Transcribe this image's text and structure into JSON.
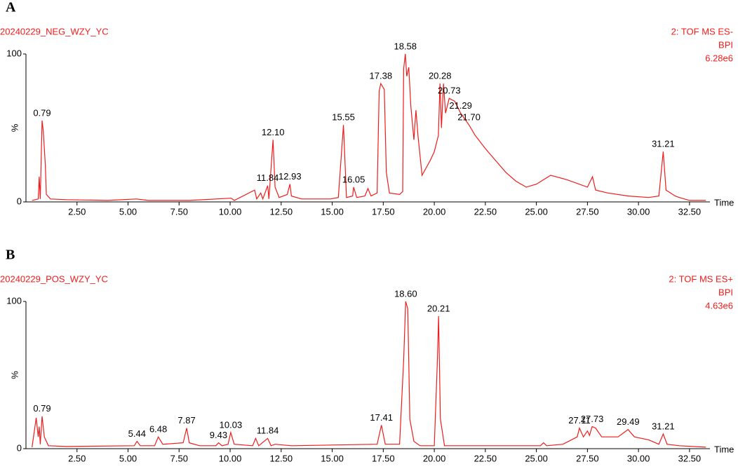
{
  "chart_data": [
    {
      "type": "line",
      "panel": "A",
      "title": "20240229_NEG_WZY_YC",
      "info": [
        "2: TOF MS ES-",
        "BPI",
        "6.28e6"
      ],
      "ylabel": "%",
      "xlabel": "Time",
      "color": "#ee1c1c",
      "xlim": [
        0,
        33.5
      ],
      "ylim": [
        0,
        100
      ],
      "xticks": [
        {
          "value": 2.5,
          "label": "2.50"
        },
        {
          "value": 5,
          "label": "5.00"
        },
        {
          "value": 7.5,
          "label": "7.50"
        },
        {
          "value": 10,
          "label": "10.00"
        },
        {
          "value": 12.5,
          "label": "12.50"
        },
        {
          "value": 15,
          "label": "15.00"
        },
        {
          "value": 17.5,
          "label": "17.50"
        },
        {
          "value": 20,
          "label": "20.00"
        },
        {
          "value": 22.5,
          "label": "22.50"
        },
        {
          "value": 25,
          "label": "25.00"
        },
        {
          "value": 27.5,
          "label": "27.50"
        },
        {
          "value": 30,
          "label": "30.00"
        },
        {
          "value": 32.5,
          "label": "32.50"
        }
      ],
      "yticks": [
        0,
        100
      ],
      "x": [
        0.3,
        0.6,
        0.65,
        0.7,
        0.79,
        0.85,
        0.95,
        1.0,
        1.2,
        2,
        4,
        5.4,
        6,
        8,
        10.05,
        10.2,
        11.2,
        11.3,
        11.5,
        11.6,
        11.84,
        11.9,
        12.1,
        12.2,
        12.4,
        12.8,
        12.93,
        13.0,
        13.5,
        14.9,
        15.3,
        15.55,
        15.7,
        16.0,
        16.05,
        16.2,
        16.6,
        16.75,
        16.9,
        17.2,
        17.3,
        17.38,
        17.55,
        17.65,
        17.8,
        18.3,
        18.45,
        18.5,
        18.58,
        18.65,
        18.75,
        18.85,
        19.0,
        19.1,
        19.2,
        19.4,
        19.8,
        20.0,
        20.2,
        20.28,
        20.35,
        20.45,
        20.55,
        20.73,
        21.0,
        21.29,
        21.7,
        22.0,
        22.5,
        23.0,
        23.5,
        24.0,
        24.5,
        25.0,
        25.7,
        26.5,
        27.5,
        27.75,
        27.9,
        28.5,
        29.5,
        30.5,
        31.0,
        31.21,
        31.35,
        31.8,
        32.0,
        32.5,
        33.3
      ],
      "values": [
        1,
        2,
        17,
        2,
        55,
        48,
        25,
        5,
        2,
        1.5,
        1,
        2,
        1,
        1,
        2.5,
        1,
        8,
        2,
        6,
        2,
        11,
        2,
        42,
        10,
        3,
        5,
        12,
        4,
        2,
        2,
        3,
        52,
        3,
        4,
        10,
        3,
        4,
        9,
        4,
        6,
        75,
        80,
        76,
        20,
        6,
        5,
        7,
        90,
        100,
        85,
        91,
        65,
        42,
        62,
        45,
        18,
        28,
        34,
        45,
        80,
        50,
        80,
        60,
        70,
        68,
        60,
        52,
        45,
        36,
        28,
        20,
        14,
        10,
        12,
        18,
        15,
        10,
        17,
        8,
        6,
        4,
        3,
        4,
        34,
        8,
        4,
        3,
        1,
        1
      ],
      "annotations": [
        {
          "text": "0.79",
          "x": 0.79,
          "y": 55
        },
        {
          "text": "11.84",
          "x": 11.84,
          "y": 11
        },
        {
          "text": "12.10",
          "x": 12.1,
          "y": 42
        },
        {
          "text": "12.93",
          "x": 12.93,
          "y": 12
        },
        {
          "text": "15.55",
          "x": 15.55,
          "y": 52
        },
        {
          "text": "16.05",
          "x": 16.05,
          "y": 10
        },
        {
          "text": "17.38",
          "x": 17.38,
          "y": 80
        },
        {
          "text": "18.58",
          "x": 18.58,
          "y": 100
        },
        {
          "text": "20.28",
          "x": 20.28,
          "y": 80
        },
        {
          "text": "20.73",
          "x": 20.73,
          "y": 70
        },
        {
          "text": "21.29",
          "x": 21.29,
          "y": 60
        },
        {
          "text": "21.70",
          "x": 21.7,
          "y": 52
        },
        {
          "text": "31.21",
          "x": 31.21,
          "y": 34
        }
      ]
    },
    {
      "type": "line",
      "panel": "B",
      "title": "20240229_POS_WZY_YC",
      "info": [
        "2: TOF MS ES+",
        "BPI",
        "4.63e6"
      ],
      "ylabel": "%",
      "xlabel": "Time",
      "color": "#ee1c1c",
      "xlim": [
        0,
        33.5
      ],
      "ylim": [
        0,
        100
      ],
      "xticks": [
        {
          "value": 2.5,
          "label": "2.50"
        },
        {
          "value": 5,
          "label": "5.00"
        },
        {
          "value": 7.5,
          "label": "7.50"
        },
        {
          "value": 10,
          "label": "10.00"
        },
        {
          "value": 12.5,
          "label": "12.50"
        },
        {
          "value": 15,
          "label": "15.00"
        },
        {
          "value": 17.5,
          "label": "17.50"
        },
        {
          "value": 20,
          "label": "20.00"
        },
        {
          "value": 22.5,
          "label": "22.50"
        },
        {
          "value": 25,
          "label": "25.00"
        },
        {
          "value": 27.5,
          "label": "27.50"
        },
        {
          "value": 30,
          "label": "30.00"
        },
        {
          "value": 32.5,
          "label": "32.50"
        }
      ],
      "yticks": [
        0,
        100
      ],
      "x": [
        0.3,
        0.5,
        0.6,
        0.65,
        0.7,
        0.79,
        0.9,
        1.1,
        2,
        5.3,
        5.44,
        5.6,
        6.3,
        6.48,
        6.7,
        7.7,
        7.87,
        8.0,
        8.5,
        9.3,
        9.43,
        9.6,
        9.9,
        10.03,
        10.2,
        11.1,
        11.25,
        11.4,
        11.84,
        12.0,
        12.2,
        13,
        17.2,
        17.41,
        17.6,
        18.3,
        18.5,
        18.6,
        18.7,
        18.8,
        19.0,
        19.3,
        20.0,
        20.15,
        20.21,
        20.3,
        20.5,
        25.2,
        25.35,
        25.5,
        26.3,
        27.0,
        27.11,
        27.3,
        27.5,
        27.6,
        27.73,
        27.9,
        28.2,
        29.0,
        29.49,
        29.8,
        30.5,
        31.0,
        31.21,
        31.4,
        32,
        33.3
      ],
      "values": [
        1,
        21,
        8,
        15,
        3,
        22,
        8,
        2,
        1.5,
        2,
        5,
        2,
        2,
        8,
        3,
        4,
        14,
        4,
        2,
        2,
        4,
        2,
        3,
        11,
        3,
        2,
        7,
        2,
        7,
        2,
        3,
        2,
        3,
        16,
        3,
        3,
        60,
        100,
        95,
        20,
        5,
        2,
        2,
        60,
        90,
        20,
        2,
        2,
        4,
        2,
        3,
        8,
        14,
        8,
        12,
        9,
        15,
        14,
        8,
        8,
        13,
        8,
        6,
        3,
        10,
        3,
        2,
        1
      ],
      "annotations": [
        {
          "text": "0.79",
          "x": 0.79,
          "y": 22
        },
        {
          "text": "5.44",
          "x": 5.44,
          "y": 5
        },
        {
          "text": "6.48",
          "x": 6.48,
          "y": 8
        },
        {
          "text": "7.87",
          "x": 7.87,
          "y": 14
        },
        {
          "text": "9.43",
          "x": 9.43,
          "y": 4
        },
        {
          "text": "10.03",
          "x": 10.03,
          "y": 11
        },
        {
          "text": "11.84",
          "x": 11.84,
          "y": 7
        },
        {
          "text": "17.41",
          "x": 17.41,
          "y": 16
        },
        {
          "text": "18.60",
          "x": 18.6,
          "y": 100
        },
        {
          "text": "20.21",
          "x": 20.21,
          "y": 90
        },
        {
          "text": "27.11",
          "x": 27.11,
          "y": 14
        },
        {
          "text": "27.73",
          "x": 27.73,
          "y": 15
        },
        {
          "text": "29.49",
          "x": 29.49,
          "y": 13
        },
        {
          "text": "31.21",
          "x": 31.21,
          "y": 10
        }
      ]
    }
  ]
}
